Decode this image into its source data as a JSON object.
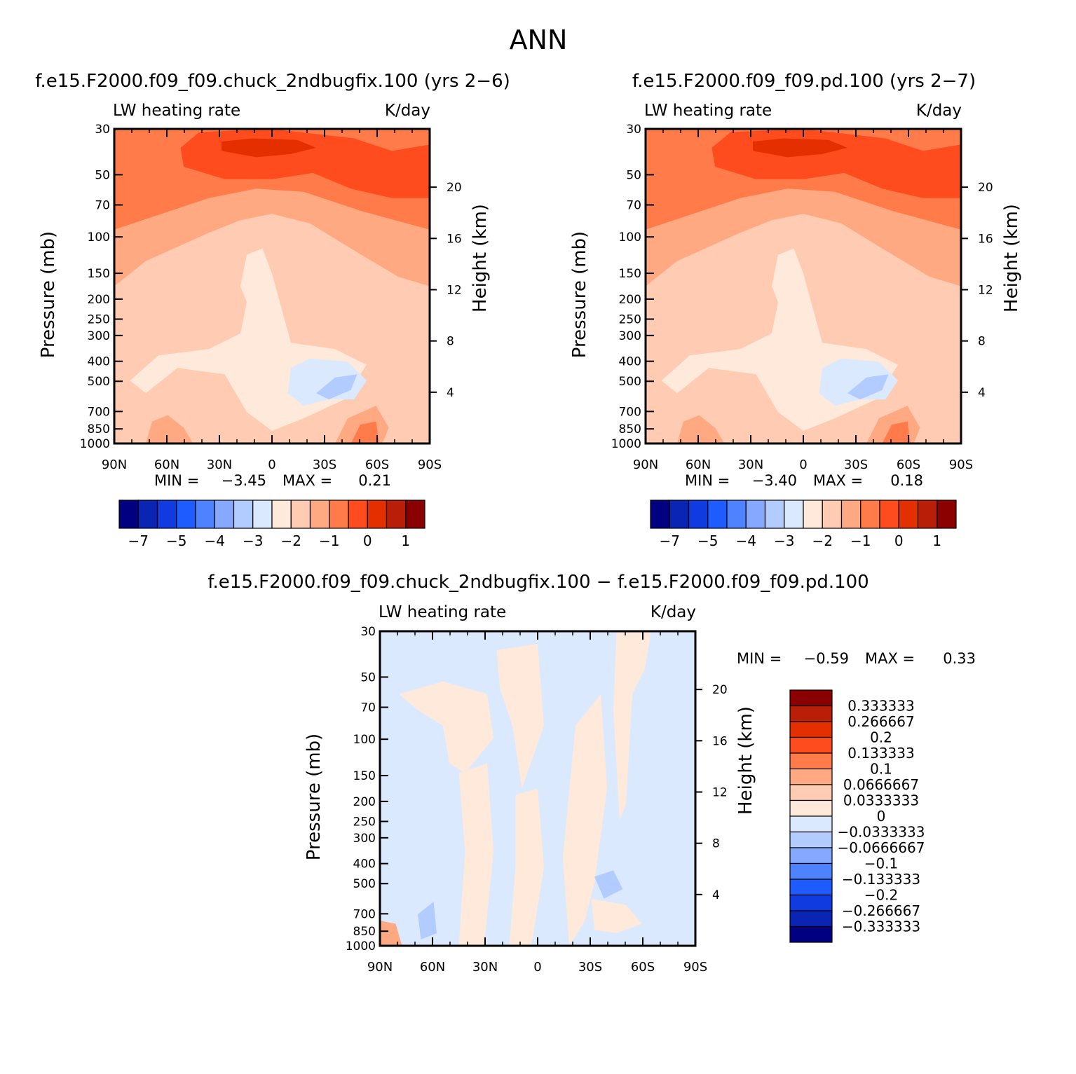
{
  "figure_title": "ANN",
  "colors": {
    "full_scale": [
      "#000080",
      "#0a24b4",
      "#0f3be0",
      "#1e5cff",
      "#4f82ff",
      "#86a9ff",
      "#b3ccff",
      "#dbe9ff",
      "#ffe9da",
      "#ffcbb2",
      "#ffa983",
      "#ff7b4a",
      "#ff4c1f",
      "#e43000",
      "#b81e08",
      "#8b0000"
    ],
    "diff_scale": [
      "#000080",
      "#0a24b4",
      "#0f3be0",
      "#1e5cff",
      "#4f82ff",
      "#86a9ff",
      "#b3ccff",
      "#dbe9ff",
      "#ffe9da",
      "#ffcbb2",
      "#ffa983",
      "#ff7b4a",
      "#ff4c1f",
      "#e43000",
      "#b81e08",
      "#8b0000"
    ]
  },
  "chart_data": [
    {
      "type": "heatmap",
      "title": "f.e15.F2000.f09_f09.chuck_2ndbugfix.100 (yrs 2−6)",
      "subtitle_left": "LW heating rate",
      "subtitle_right": "K/day",
      "ylabel": "Pressure (mb)",
      "ylabel_right": "Height (km)",
      "x_ticks": [
        "90N",
        "60N",
        "30N",
        "0",
        "30S",
        "60S",
        "90S"
      ],
      "y_ticks": [
        "30",
        "50",
        "70",
        "100",
        "150",
        "200",
        "250",
        "300",
        "400",
        "500",
        "700",
        "850",
        "1000"
      ],
      "y_ticks_right": [
        "20",
        "16",
        "12",
        "8",
        "4"
      ],
      "min_label": "MIN =",
      "min_value": "−3.45",
      "max_label": "MAX =",
      "max_value": "0.21",
      "colorbar_labels": [
        "−7",
        "−5",
        "−4",
        "−3",
        "−2",
        "−1",
        "0",
        "1"
      ]
    },
    {
      "type": "heatmap",
      "title": "f.e15.F2000.f09_f09.pd.100 (yrs 2−7)",
      "subtitle_left": "LW heating rate",
      "subtitle_right": "K/day",
      "ylabel": "Pressure (mb)",
      "ylabel_right": "Height (km)",
      "x_ticks": [
        "90N",
        "60N",
        "30N",
        "0",
        "30S",
        "60S",
        "90S"
      ],
      "y_ticks": [
        "30",
        "50",
        "70",
        "100",
        "150",
        "200",
        "250",
        "300",
        "400",
        "500",
        "700",
        "850",
        "1000"
      ],
      "y_ticks_right": [
        "20",
        "16",
        "12",
        "8",
        "4"
      ],
      "min_label": "MIN =",
      "min_value": "−3.40",
      "max_label": "MAX =",
      "max_value": "0.18",
      "colorbar_labels": [
        "−7",
        "−5",
        "−4",
        "−3",
        "−2",
        "−1",
        "0",
        "1"
      ]
    },
    {
      "type": "heatmap",
      "title": "f.e15.F2000.f09_f09.chuck_2ndbugfix.100 − f.e15.F2000.f09_f09.pd.100",
      "subtitle_left": "LW heating rate",
      "subtitle_right": "K/day",
      "ylabel": "Pressure (mb)",
      "ylabel_right": "Height (km)",
      "x_ticks": [
        "90N",
        "60N",
        "30N",
        "0",
        "30S",
        "60S",
        "90S"
      ],
      "y_ticks": [
        "30",
        "50",
        "70",
        "100",
        "150",
        "200",
        "250",
        "300",
        "400",
        "500",
        "700",
        "850",
        "1000"
      ],
      "y_ticks_right": [
        "20",
        "16",
        "12",
        "8",
        "4"
      ],
      "min_label": "MIN =",
      "min_value": "−0.59",
      "max_label": "MAX =",
      "max_value": "0.33",
      "colorbar_labels": [
        "0.333333",
        "0.266667",
        "0.2",
        "0.133333",
        "0.1",
        "0.0666667",
        "0.0333333",
        "0",
        "−0.0333333",
        "−0.0666667",
        "−0.1",
        "−0.133333",
        "−0.2",
        "−0.266667",
        "−0.333333"
      ]
    }
  ]
}
